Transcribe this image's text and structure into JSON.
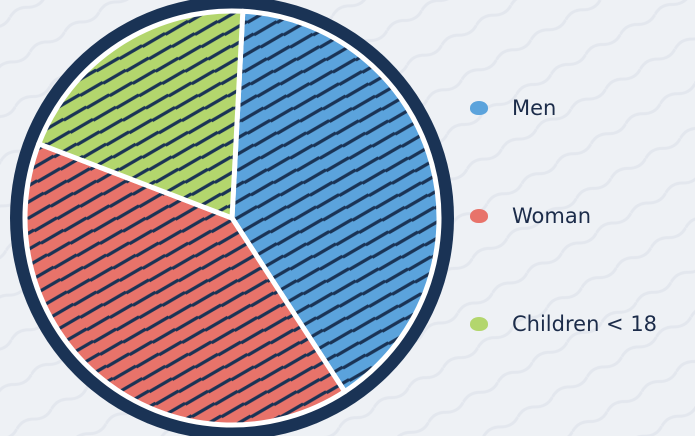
{
  "chart_data": {
    "type": "pie",
    "categories": [
      "Men",
      "Woman",
      "Children < 18"
    ],
    "values": [
      40,
      40,
      20
    ],
    "colors": [
      "#5ba3dc",
      "#e8736a",
      "#b3d66d"
    ],
    "outline_color": "#1a3355",
    "title": "",
    "legend_position": "right"
  }
}
